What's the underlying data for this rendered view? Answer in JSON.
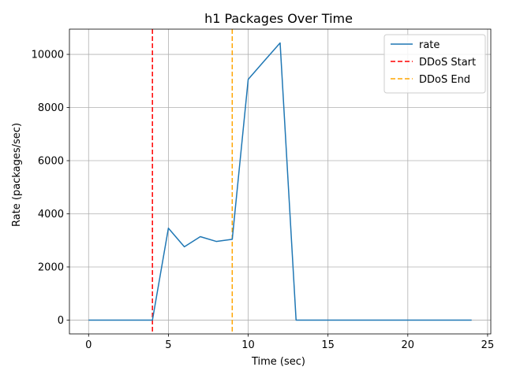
{
  "chart_data": {
    "type": "line",
    "title": "h1 Packages Over Time",
    "xlabel": "Time (sec)",
    "ylabel": "Rate (packages/sec)",
    "xlim": [
      -1.2,
      25.2
    ],
    "ylim": [
      -520,
      10950
    ],
    "xticks": [
      0,
      5,
      10,
      15,
      20,
      25
    ],
    "yticks": [
      0,
      2000,
      4000,
      6000,
      8000,
      10000
    ],
    "grid": true,
    "legend_position": "top-right",
    "series": [
      {
        "name": "rate",
        "color": "#1f77b4",
        "style": "solid",
        "x": [
          0,
          1,
          2,
          3,
          4,
          5,
          6,
          7,
          8,
          9,
          10,
          11,
          12,
          13,
          14,
          15,
          16,
          17,
          18,
          19,
          20,
          21,
          22,
          23,
          24
        ],
        "y": [
          0,
          0,
          0,
          0,
          0,
          3460,
          2760,
          3140,
          2960,
          3040,
          9060,
          9750,
          10430,
          0,
          0,
          0,
          0,
          0,
          0,
          0,
          0,
          0,
          0,
          0,
          0
        ]
      }
    ],
    "vlines": [
      {
        "name": "DDoS Start",
        "x": 4,
        "color": "#ff0000",
        "style": "dashed"
      },
      {
        "name": "DDoS End",
        "x": 9,
        "color": "#ffa500",
        "style": "dashed"
      }
    ]
  }
}
